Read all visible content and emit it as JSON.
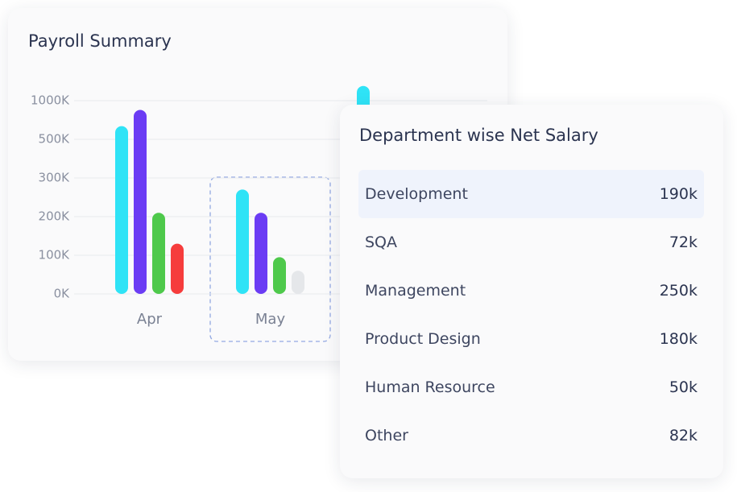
{
  "chart_data": {
    "type": "bar",
    "title": "Payroll Summary",
    "categories": [
      "Apr",
      "May",
      null
    ],
    "series": [
      {
        "color": "#2fe3f6",
        "values": [
          670,
          270,
          1190
        ]
      },
      {
        "color": "#6b3cf4",
        "values": [
          880,
          210,
          null
        ]
      },
      {
        "color": "#4ec94b",
        "values": [
          210,
          95,
          null
        ]
      },
      {
        "colors": [
          "#f63c3c",
          "#e5e7ea",
          "#f63c3c"
        ],
        "values": [
          130,
          60,
          null
        ]
      }
    ],
    "yticks": [
      {
        "value": 0,
        "label": "0K"
      },
      {
        "value": 100,
        "label": "100K"
      },
      {
        "value": 200,
        "label": "200K"
      },
      {
        "value": 300,
        "label": "300K"
      },
      {
        "value": 500,
        "label": "500K"
      },
      {
        "value": 1000,
        "label": "1000K"
      }
    ],
    "grid": true
  },
  "table": {
    "title": "Department wise Net Salary",
    "rows": [
      [
        "Development",
        "190k"
      ],
      [
        "SQA",
        "72k"
      ],
      [
        "Management",
        "250k"
      ],
      [
        "Product Design",
        "180k"
      ],
      [
        "Human Resource",
        "50k"
      ],
      [
        "Other",
        "82k"
      ]
    ]
  }
}
